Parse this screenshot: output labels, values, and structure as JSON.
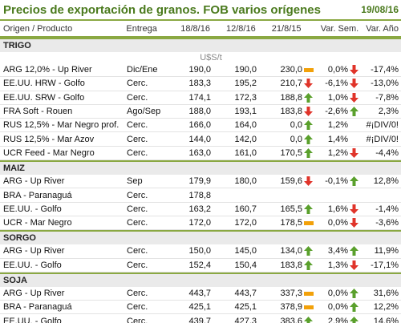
{
  "title": "Precios de exportación de granos. FOB varios orígenes",
  "date": "19/08/16",
  "headers": [
    "Origen / Producto",
    "Entrega",
    "18/8/16",
    "12/8/16",
    "21/8/15",
    "Var. Sem.",
    "Var. Año"
  ],
  "unit": "U$S/t",
  "colors": {
    "up": "#5aa02c",
    "down": "#e0342a",
    "flat": "#f2a10a",
    "accent": "#8aa842",
    "title": "#4a7a1d"
  },
  "sections": [
    {
      "name": "TRIGO",
      "rows": [
        {
          "product": "ARG 12,0% - Up River",
          "entrega": "Dic/Ene",
          "v1": "190,0",
          "v2": "190,0",
          "v3": "230,0",
          "i1": "flat",
          "sem": "0,0%",
          "i2": "down",
          "anio": "-17,4%"
        },
        {
          "product": "EE.UU. HRW - Golfo",
          "entrega": "Cerc.",
          "v1": "183,3",
          "v2": "195,2",
          "v3": "210,7",
          "i1": "down",
          "sem": "-6,1%",
          "i2": "down",
          "anio": "-13,0%"
        },
        {
          "product": "EE.UU. SRW - Golfo",
          "entrega": "Cerc.",
          "v1": "174,1",
          "v2": "172,3",
          "v3": "188,8",
          "i1": "up",
          "sem": "1,0%",
          "i2": "down",
          "anio": "-7,8%"
        },
        {
          "product": "FRA Soft - Rouen",
          "entrega": "Ago/Sep",
          "v1": "188,0",
          "v2": "193,1",
          "v3": "183,8",
          "i1": "down",
          "sem": "-2,6%",
          "i2": "up",
          "anio": "2,3%"
        },
        {
          "product": "RUS 12,5% - Mar Negro prof.",
          "entrega": "Cerc.",
          "v1": "166,0",
          "v2": "164,0",
          "v3": "0,0",
          "i1": "up",
          "sem": "1,2%",
          "i2": "",
          "anio": "#¡DIV/0!"
        },
        {
          "product": "RUS 12,5% - Mar Azov",
          "entrega": "Cerc.",
          "v1": "144,0",
          "v2": "142,0",
          "v3": "0,0",
          "i1": "up",
          "sem": "1,4%",
          "i2": "",
          "anio": "#¡DIV/0!"
        },
        {
          "product": "UCR Feed - Mar Negro",
          "entrega": "Cerc.",
          "v1": "163,0",
          "v2": "161,0",
          "v3": "170,5",
          "i1": "up",
          "sem": "1,2%",
          "i2": "down",
          "anio": "-4,4%"
        }
      ]
    },
    {
      "name": "MAIZ",
      "rows": [
        {
          "product": "ARG - Up River",
          "entrega": "Sep",
          "v1": "179,9",
          "v2": "180,0",
          "v3": "159,6",
          "i1": "down",
          "sem": "-0,1%",
          "i2": "up",
          "anio": "12,8%"
        },
        {
          "product": "BRA - Paranaguá",
          "entrega": "Cerc.",
          "v1": "178,8",
          "v2": "",
          "v3": "",
          "i1": "",
          "sem": "",
          "i2": "",
          "anio": ""
        },
        {
          "product": "EE.UU. - Golfo",
          "entrega": "Cerc.",
          "v1": "163,2",
          "v2": "160,7",
          "v3": "165,5",
          "i1": "up",
          "sem": "1,6%",
          "i2": "down",
          "anio": "-1,4%"
        },
        {
          "product": "UCR - Mar Negro",
          "entrega": "Cerc.",
          "v1": "172,0",
          "v2": "172,0",
          "v3": "178,5",
          "i1": "flat",
          "sem": "0,0%",
          "i2": "down",
          "anio": "-3,6%"
        }
      ]
    },
    {
      "name": "SORGO",
      "rows": [
        {
          "product": "ARG - Up River",
          "entrega": "Cerc.",
          "v1": "150,0",
          "v2": "145,0",
          "v3": "134,0",
          "i1": "up",
          "sem": "3,4%",
          "i2": "up",
          "anio": "11,9%"
        },
        {
          "product": "EE.UU. - Golfo",
          "entrega": "Cerc.",
          "v1": "152,4",
          "v2": "150,4",
          "v3": "183,8",
          "i1": "up",
          "sem": "1,3%",
          "i2": "down",
          "anio": "-17,1%"
        }
      ]
    },
    {
      "name": "SOJA",
      "rows": [
        {
          "product": "ARG - Up River",
          "entrega": "Cerc.",
          "v1": "443,7",
          "v2": "443,7",
          "v3": "337,3",
          "i1": "flat",
          "sem": "0,0%",
          "i2": "up",
          "anio": "31,6%"
        },
        {
          "product": "BRA - Paranaguá",
          "entrega": "Cerc.",
          "v1": "425,1",
          "v2": "425,1",
          "v3": "378,9",
          "i1": "flat",
          "sem": "0,0%",
          "i2": "up",
          "anio": "12,2%"
        },
        {
          "product": "EE.UU. - Golfo",
          "entrega": "Cerc.",
          "v1": "439,7",
          "v2": "427,3",
          "v3": "383,6",
          "i1": "up",
          "sem": "2,9%",
          "i2": "up",
          "anio": "14,6%"
        }
      ]
    }
  ]
}
